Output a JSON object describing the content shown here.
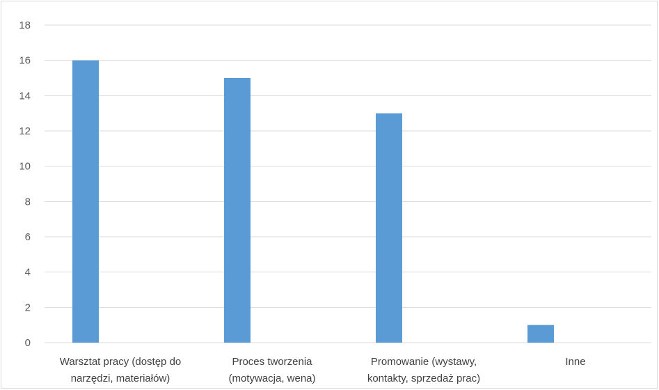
{
  "chart_data": {
    "type": "bar",
    "categories": [
      [
        "Warsztat pracy (dostęp do",
        "narzędzi, materiałów)"
      ],
      [
        "Proces tworzenia",
        "(motywacja, wena)"
      ],
      [
        "Promowanie (wystawy,",
        "kontakty, sprzedaż prac)"
      ],
      [
        "Inne"
      ]
    ],
    "values": [
      16,
      15,
      13,
      1
    ],
    "ylim": [
      0,
      18
    ],
    "yticks": [
      0,
      2,
      4,
      6,
      8,
      10,
      12,
      14,
      16,
      18
    ],
    "grid": true,
    "bar_color": "#5b9bd5",
    "grid_color": "#d9d9d9",
    "legend": "none"
  }
}
